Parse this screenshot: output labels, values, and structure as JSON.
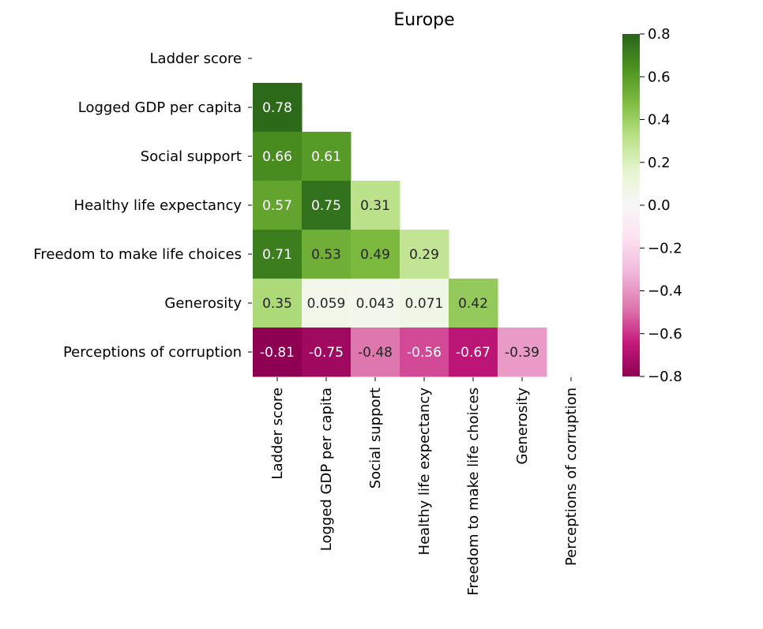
{
  "chart_data": {
    "type": "heatmap",
    "title": "Europe",
    "xlabel": "",
    "ylabel": "",
    "rows": [
      "Ladder score",
      "Logged GDP per capita",
      "Social support",
      "Healthy life expectancy",
      "Freedom to make life choices",
      "Generosity",
      "Perceptions of corruption"
    ],
    "columns": [
      "Ladder score",
      "Logged GDP per capita",
      "Social support",
      "Healthy life expectancy",
      "Freedom to make life choices",
      "Generosity",
      "Perceptions of corruption"
    ],
    "cells": [
      {
        "row": 1,
        "col": 0,
        "value": 0.78,
        "label": "0.78"
      },
      {
        "row": 2,
        "col": 0,
        "value": 0.66,
        "label": "0.66"
      },
      {
        "row": 2,
        "col": 1,
        "value": 0.61,
        "label": "0.61"
      },
      {
        "row": 3,
        "col": 0,
        "value": 0.57,
        "label": "0.57"
      },
      {
        "row": 3,
        "col": 1,
        "value": 0.75,
        "label": "0.75"
      },
      {
        "row": 3,
        "col": 2,
        "value": 0.31,
        "label": "0.31"
      },
      {
        "row": 4,
        "col": 0,
        "value": 0.71,
        "label": "0.71"
      },
      {
        "row": 4,
        "col": 1,
        "value": 0.53,
        "label": "0.53"
      },
      {
        "row": 4,
        "col": 2,
        "value": 0.49,
        "label": "0.49"
      },
      {
        "row": 4,
        "col": 3,
        "value": 0.29,
        "label": "0.29"
      },
      {
        "row": 5,
        "col": 0,
        "value": 0.35,
        "label": "0.35"
      },
      {
        "row": 5,
        "col": 1,
        "value": 0.059,
        "label": "0.059"
      },
      {
        "row": 5,
        "col": 2,
        "value": 0.043,
        "label": "0.043"
      },
      {
        "row": 5,
        "col": 3,
        "value": 0.071,
        "label": "0.071"
      },
      {
        "row": 5,
        "col": 4,
        "value": 0.42,
        "label": "0.42"
      },
      {
        "row": 6,
        "col": 0,
        "value": -0.81,
        "label": "-0.81"
      },
      {
        "row": 6,
        "col": 1,
        "value": -0.75,
        "label": "-0.75"
      },
      {
        "row": 6,
        "col": 2,
        "value": -0.48,
        "label": "-0.48"
      },
      {
        "row": 6,
        "col": 3,
        "value": -0.56,
        "label": "-0.56"
      },
      {
        "row": 6,
        "col": 4,
        "value": -0.67,
        "label": "-0.67"
      },
      {
        "row": 6,
        "col": 5,
        "value": -0.39,
        "label": "-0.39"
      }
    ],
    "colorbar": {
      "colormap": "PiYG",
      "range": [
        -0.8,
        0.8
      ],
      "ticks": [
        0.8,
        0.6,
        0.4,
        0.2,
        0.0,
        -0.2,
        -0.4,
        -0.6,
        -0.8
      ],
      "tick_labels": [
        "0.8",
        "0.6",
        "0.4",
        "0.2",
        "0.0",
        "−0.2",
        "−0.4",
        "−0.6",
        "−0.8"
      ],
      "stops": [
        "#8e0152",
        "#c51b7d",
        "#de77ae",
        "#f1b6da",
        "#fde0ef",
        "#f7f7f7",
        "#e6f5d0",
        "#b8e186",
        "#7fbc41",
        "#4d9221",
        "#276419"
      ]
    },
    "mask": "upper-triangle-including-diagonal",
    "grid": false,
    "legend": "colorbar-right"
  }
}
